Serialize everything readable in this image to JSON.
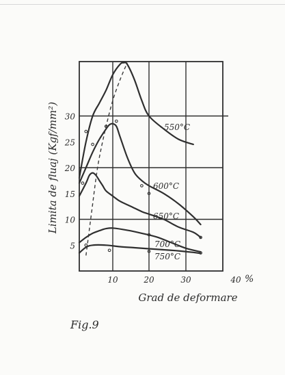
{
  "chart_data": {
    "type": "line",
    "title": "",
    "xlabel": "Grad de deformare",
    "ylabel": "Limita de fluaj (Kgf/mm²)",
    "x_unit_label": "%",
    "xlim": [
      0,
      40
    ],
    "ylim": [
      0,
      40
    ],
    "x_ticks": [
      10,
      20,
      30,
      40
    ],
    "y_ticks": [
      5,
      10,
      15,
      20,
      25,
      30
    ],
    "grid": true,
    "series": [
      {
        "name": "550°C",
        "x": [
          0,
          2,
          4,
          6,
          8,
          10,
          12,
          13,
          14,
          16,
          18,
          20,
          24,
          28,
          32
        ],
        "y": [
          18,
          25,
          30,
          32.5,
          35,
          38,
          40,
          40.3,
          40,
          37,
          33,
          30,
          27.5,
          25.5,
          24.5
        ],
        "points_x": [
          2,
          4,
          11
        ],
        "points_y": [
          27,
          24.5,
          29
        ]
      },
      {
        "name": "600°C",
        "x": [
          0,
          2,
          4,
          6,
          8,
          9,
          10,
          11,
          12,
          14,
          16,
          18,
          20,
          24,
          28,
          32,
          34
        ],
        "y": [
          17,
          20,
          23,
          25.5,
          27.5,
          28.3,
          28.5,
          28,
          26,
          22,
          19,
          17.5,
          16.5,
          15,
          13,
          10.5,
          9
        ],
        "points_x": [
          8,
          18
        ],
        "points_y": [
          28,
          16.5
        ]
      },
      {
        "name": "650°C",
        "x": [
          0,
          2,
          3,
          4,
          5,
          6,
          7,
          8,
          10,
          12,
          15,
          18,
          20,
          24,
          28,
          32,
          34
        ],
        "y": [
          14.5,
          17,
          18.5,
          19,
          18.5,
          17.5,
          16.5,
          15.5,
          14.5,
          13.5,
          12.5,
          11.5,
          11,
          10,
          8.5,
          7.5,
          6.5
        ],
        "points_x": [
          1,
          20,
          34
        ],
        "points_y": [
          17,
          15,
          6.5
        ]
      },
      {
        "name": "700°C",
        "x": [
          0,
          2,
          4,
          6,
          8,
          10,
          14,
          18,
          22,
          26,
          30,
          34
        ],
        "y": [
          5.5,
          6.5,
          7.3,
          7.8,
          8.2,
          8.3,
          7.9,
          7.3,
          6.6,
          5.5,
          4.4,
          3.7
        ],
        "points_x": [
          20
        ],
        "points_y": [
          7
        ]
      },
      {
        "name": "750°C",
        "x": [
          0,
          2,
          4,
          8,
          12,
          16,
          20,
          24,
          28,
          32,
          34
        ],
        "y": [
          3.5,
          4.6,
          5,
          5,
          4.7,
          4.5,
          4.3,
          4.1,
          3.9,
          3.6,
          3.4
        ],
        "points_x": [
          2,
          9,
          20,
          34
        ],
        "points_y": [
          5,
          4,
          3.8,
          3.5
        ]
      },
      {
        "name": "",
        "style": "dashed",
        "x": [
          2,
          3,
          4,
          5,
          6,
          8,
          10,
          12,
          14
        ],
        "y": [
          3,
          8,
          13,
          18,
          22,
          28,
          33,
          37,
          40.3
        ]
      }
    ]
  },
  "caption": "Fig.9"
}
